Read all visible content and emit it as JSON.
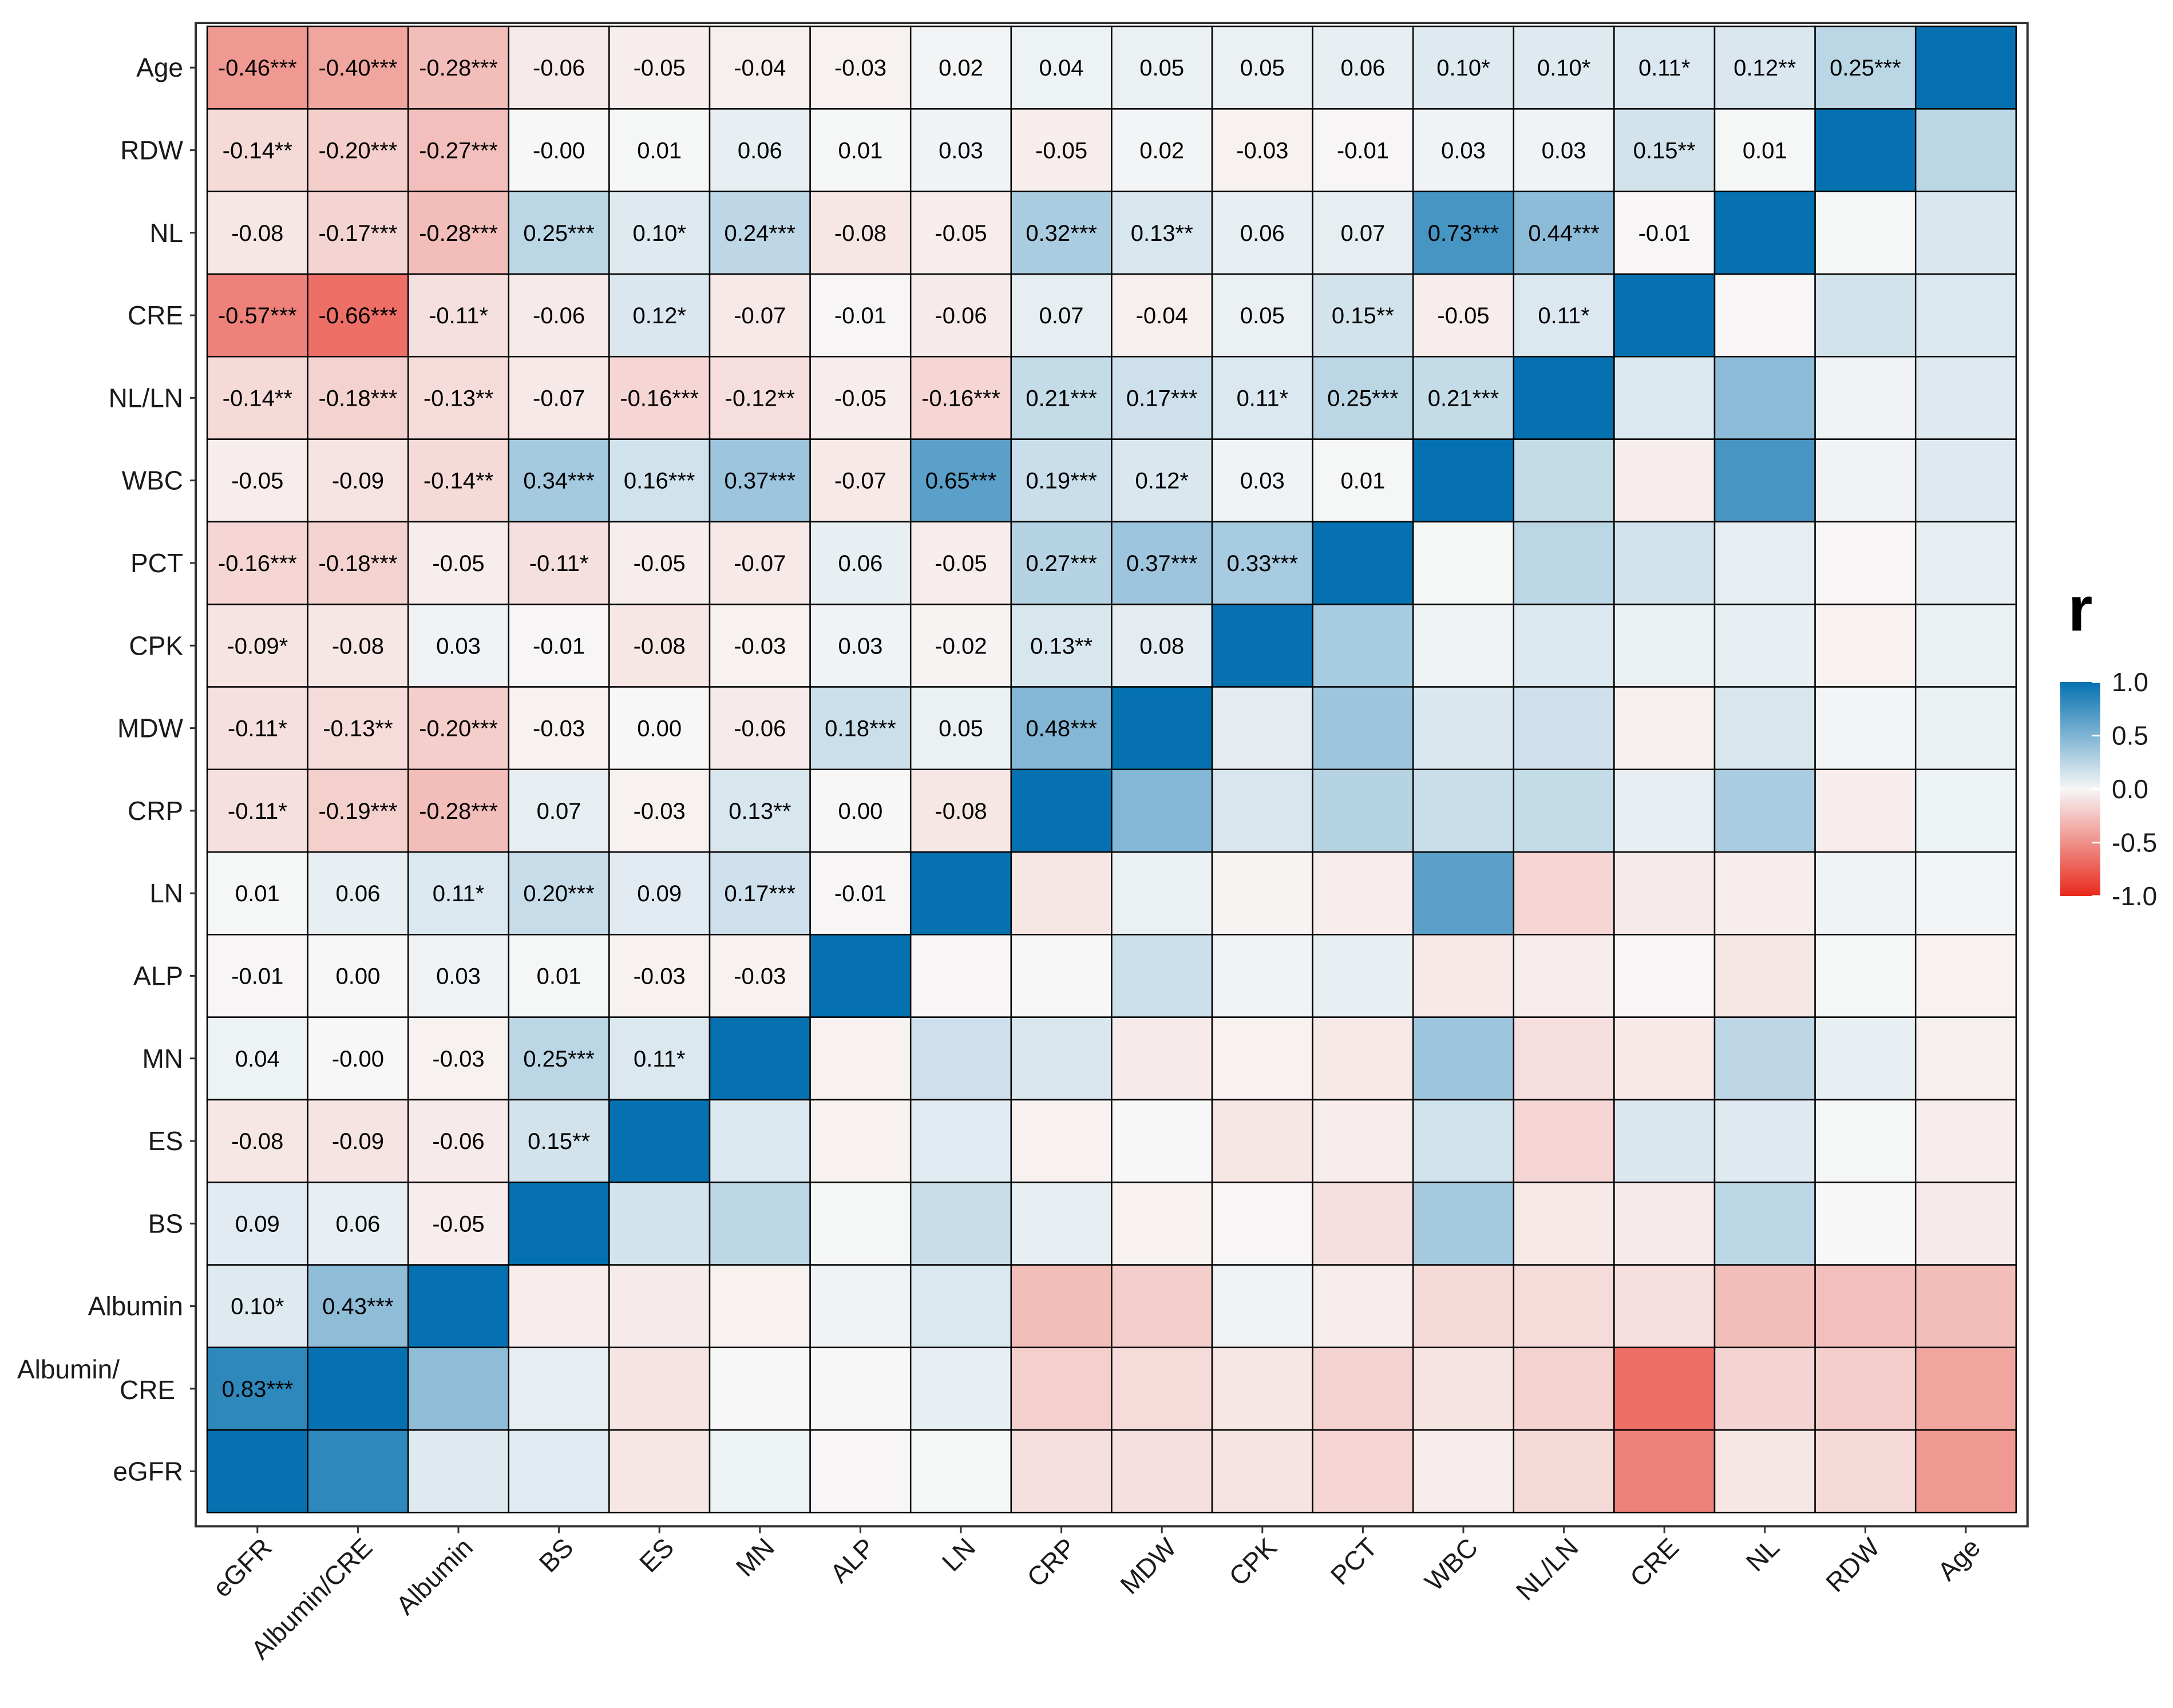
{
  "chart_data": {
    "type": "heatmap",
    "title": "",
    "xlabel": "",
    "ylabel": "",
    "variables": [
      "eGFR",
      "Albumin/CRE",
      "Albumin",
      "BS",
      "ES",
      "MN",
      "ALP",
      "LN",
      "CRP",
      "MDW",
      "CPK",
      "PCT",
      "WBC",
      "NL/LN",
      "CRE",
      "NL",
      "RDW",
      "Age"
    ],
    "y_tick_labels": [
      "eGFR",
      "Albumin/\nCRE",
      "Albumin",
      "BS",
      "ES",
      "MN",
      "ALP",
      "LN",
      "CRP",
      "MDW",
      "CPK",
      "PCT",
      "WBC",
      "NL/LN",
      "CRE",
      "NL",
      "RDW",
      "Age"
    ],
    "value_range": [
      -1,
      1
    ],
    "legend": {
      "title": "r",
      "position": "right",
      "ticks": [
        "1.0",
        "0.5",
        "0.0",
        "-0.5",
        "-1.0"
      ],
      "colors": {
        "positive": "#0571B0",
        "mid": "#F7F7F7",
        "negative": "#E8291C"
      }
    },
    "lower_triangle_labels": [
      [
        "0.83***"
      ],
      [
        "0.10*",
        "0.43***"
      ],
      [
        "0.09",
        "0.06",
        "-0.05"
      ],
      [
        "-0.08",
        "-0.09",
        "-0.06",
        "0.15**"
      ],
      [
        "0.04",
        "-0.00",
        "-0.03",
        "0.25***",
        "0.11*"
      ],
      [
        "-0.01",
        "0.00",
        "0.03",
        "0.01",
        "-0.03",
        "-0.03"
      ],
      [
        "0.01",
        "0.06",
        "0.11*",
        "0.20***",
        "0.09",
        "0.17***",
        "-0.01"
      ],
      [
        "-0.11*",
        "-0.19***",
        "-0.28***",
        "0.07",
        "-0.03",
        "0.13**",
        "0.00",
        "-0.08"
      ],
      [
        "-0.11*",
        "-0.13**",
        "-0.20***",
        "-0.03",
        "0.00",
        "-0.06",
        "0.18***",
        "0.05",
        "0.48***"
      ],
      [
        "-0.09*",
        "-0.08",
        "0.03",
        "-0.01",
        "-0.08",
        "-0.03",
        "0.03",
        "-0.02",
        "0.13**",
        "0.08"
      ],
      [
        "-0.16***",
        "-0.18***",
        "-0.05",
        "-0.11*",
        "-0.05",
        "-0.07",
        "0.06",
        "-0.05",
        "0.27***",
        "0.37***",
        "0.33***"
      ],
      [
        "-0.05",
        "-0.09",
        "-0.14**",
        "0.34***",
        "0.16***",
        "0.37***",
        "-0.07",
        "0.65***",
        "0.19***",
        "0.12*",
        "0.03",
        "0.01"
      ],
      [
        "-0.14**",
        "-0.18***",
        "-0.13**",
        "-0.07",
        "-0.16***",
        "-0.12**",
        "-0.05",
        "-0.16***",
        "0.21***",
        "0.17***",
        "0.11*",
        "0.25***",
        "0.21***"
      ],
      [
        "-0.57***",
        "-0.66***",
        "-0.11*",
        "-0.06",
        "0.12*",
        "-0.07",
        "-0.01",
        "-0.06",
        "0.07",
        "-0.04",
        "0.05",
        "0.15**",
        "-0.05",
        "0.11*"
      ],
      [
        "-0.08",
        "-0.17***",
        "-0.28***",
        "0.25***",
        "0.10*",
        "0.24***",
        "-0.08",
        "-0.05",
        "0.32***",
        "0.13**",
        "0.06",
        "0.07",
        "0.73***",
        "0.44***",
        "-0.01"
      ],
      [
        "-0.14**",
        "-0.20***",
        "-0.27***",
        "-0.00",
        "0.01",
        "0.06",
        "0.01",
        "0.03",
        "-0.05",
        "0.02",
        "-0.03",
        "-0.01",
        "0.03",
        "0.03",
        "0.15**",
        "0.01"
      ],
      [
        "-0.46***",
        "-0.40***",
        "-0.28***",
        "-0.06",
        "-0.05",
        "-0.04",
        "-0.03",
        "0.02",
        "0.04",
        "0.05",
        "0.05",
        "0.06",
        "0.10*",
        "0.10*",
        "0.11*",
        "0.12**",
        "0.25***"
      ]
    ]
  }
}
